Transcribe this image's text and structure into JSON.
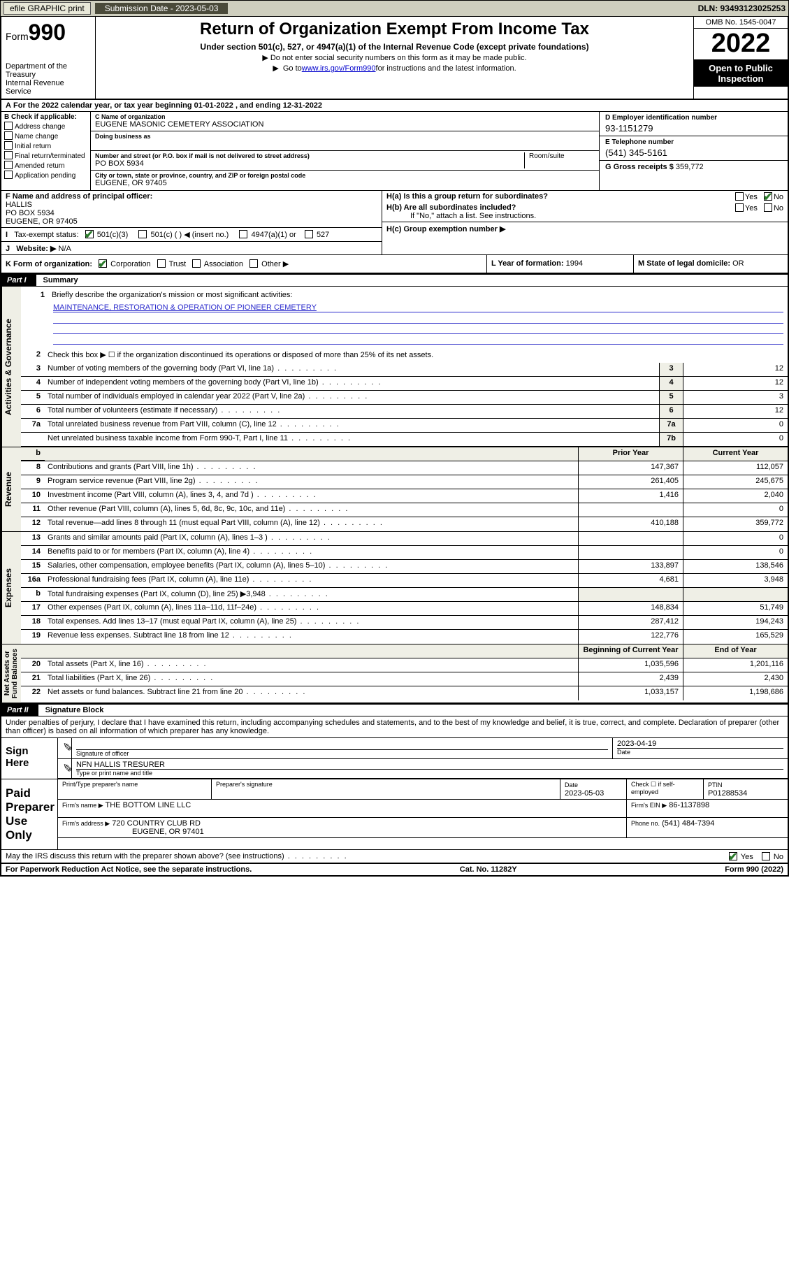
{
  "topbar": {
    "efile": "efile GRAPHIC print",
    "submission_label": "Submission Date - 2023-05-03",
    "dln": "DLN: 93493123025253"
  },
  "header": {
    "form_prefix": "Form",
    "form_num": "990",
    "title": "Return of Organization Exempt From Income Tax",
    "sub": "Under section 501(c), 527, or 4947(a)(1) of the Internal Revenue Code (except private foundations)",
    "note1": "Do not enter social security numbers on this form as it may be made public.",
    "note2_pre": "Go to ",
    "note2_link": "www.irs.gov/Form990",
    "note2_post": " for instructions and the latest information.",
    "dept": "Department of the Treasury\nInternal Revenue Service",
    "omb": "OMB No. 1545-0047",
    "year": "2022",
    "open": "Open to Public Inspection"
  },
  "A": {
    "text": "For the 2022 calendar year, or tax year beginning 01-01-2022    , and ending 12-31-2022"
  },
  "B": {
    "label": "B Check if applicable:",
    "opts": [
      "Address change",
      "Name change",
      "Initial return",
      "Final return/terminated",
      "Amended return",
      "Application pending"
    ]
  },
  "C": {
    "name_label": "C Name of organization",
    "name": "EUGENE MASONIC CEMETERY ASSOCIATION",
    "dba_label": "Doing business as",
    "addr_label": "Number and street (or P.O. box if mail is not delivered to street address)",
    "room_label": "Room/suite",
    "addr": "PO BOX 5934",
    "city_label": "City or town, state or province, country, and ZIP or foreign postal code",
    "city": "EUGENE, OR  97405"
  },
  "D": {
    "label": "D Employer identification number",
    "val": "93-1151279"
  },
  "E": {
    "label": "E Telephone number",
    "val": "(541) 345-5161"
  },
  "G": {
    "label": "G Gross receipts $",
    "val": "359,772"
  },
  "F": {
    "label": "F Name and address of principal officer:",
    "name": "HALLIS",
    "addr1": "PO BOX 5934",
    "addr2": "EUGENE, OR  97405"
  },
  "H": {
    "a": "H(a)  Is this a group return for subordinates?",
    "b": "H(b)  Are all subordinates included?",
    "b2": "If \"No,\" attach a list. See instructions.",
    "c": "H(c)  Group exemption number ▶"
  },
  "I": {
    "label": "Tax-exempt status:",
    "o1": "501(c)(3)",
    "o2": "501(c) (   ) ◀ (insert no.)",
    "o3": "4947(a)(1) or",
    "o4": "527"
  },
  "J": {
    "label": "Website: ▶",
    "val": "N/A"
  },
  "K": {
    "label": "K Form of organization:",
    "corp": "Corporation",
    "trust": "Trust",
    "assoc": "Association",
    "other": "Other ▶"
  },
  "L": {
    "label": "L Year of formation:",
    "val": "1994"
  },
  "M": {
    "label": "M State of legal domicile:",
    "val": "OR"
  },
  "part1": {
    "tag": "Part I",
    "title": "Summary",
    "q1": "Briefly describe the organization's mission or most significant activities:",
    "mission": "MAINTENANCE, RESTORATION & OPERATION OF PIONEER CEMETERY",
    "q2": "Check this box ▶ ☐  if the organization discontinued its operations or disposed of more than 25% of its net assets.",
    "rows_gov": [
      {
        "n": "3",
        "t": "Number of voting members of the governing body (Part VI, line 1a)",
        "box": "3",
        "v": "12"
      },
      {
        "n": "4",
        "t": "Number of independent voting members of the governing body (Part VI, line 1b)",
        "box": "4",
        "v": "12"
      },
      {
        "n": "5",
        "t": "Total number of individuals employed in calendar year 2022 (Part V, line 2a)",
        "box": "5",
        "v": "3"
      },
      {
        "n": "6",
        "t": "Total number of volunteers (estimate if necessary)",
        "box": "6",
        "v": "12"
      },
      {
        "n": "7a",
        "t": "Total unrelated business revenue from Part VIII, column (C), line 12",
        "box": "7a",
        "v": "0"
      },
      {
        "n": "",
        "t": "Net unrelated business taxable income from Form 990-T, Part I, line 11",
        "box": "7b",
        "v": "0"
      }
    ],
    "prior_hdr": "Prior Year",
    "curr_hdr": "Current Year",
    "rows_rev": [
      {
        "n": "8",
        "t": "Contributions and grants (Part VIII, line 1h)",
        "p": "147,367",
        "c": "112,057"
      },
      {
        "n": "9",
        "t": "Program service revenue (Part VIII, line 2g)",
        "p": "261,405",
        "c": "245,675"
      },
      {
        "n": "10",
        "t": "Investment income (Part VIII, column (A), lines 3, 4, and 7d )",
        "p": "1,416",
        "c": "2,040"
      },
      {
        "n": "11",
        "t": "Other revenue (Part VIII, column (A), lines 5, 6d, 8c, 9c, 10c, and 11e)",
        "p": "",
        "c": "0"
      },
      {
        "n": "12",
        "t": "Total revenue—add lines 8 through 11 (must equal Part VIII, column (A), line 12)",
        "p": "410,188",
        "c": "359,772"
      }
    ],
    "rows_exp": [
      {
        "n": "13",
        "t": "Grants and similar amounts paid (Part IX, column (A), lines 1–3 )",
        "p": "",
        "c": "0"
      },
      {
        "n": "14",
        "t": "Benefits paid to or for members (Part IX, column (A), line 4)",
        "p": "",
        "c": "0"
      },
      {
        "n": "15",
        "t": "Salaries, other compensation, employee benefits (Part IX, column (A), lines 5–10)",
        "p": "133,897",
        "c": "138,546"
      },
      {
        "n": "16a",
        "t": "Professional fundraising fees (Part IX, column (A), line 11e)",
        "p": "4,681",
        "c": "3,948"
      },
      {
        "n": "b",
        "t": "Total fundraising expenses (Part IX, column (D), line 25) ▶3,948",
        "p": "GRAY",
        "c": "GRAY"
      },
      {
        "n": "17",
        "t": "Other expenses (Part IX, column (A), lines 11a–11d, 11f–24e)",
        "p": "148,834",
        "c": "51,749"
      },
      {
        "n": "18",
        "t": "Total expenses. Add lines 13–17 (must equal Part IX, column (A), line 25)",
        "p": "287,412",
        "c": "194,243"
      },
      {
        "n": "19",
        "t": "Revenue less expenses. Subtract line 18 from line 12",
        "p": "122,776",
        "c": "165,529"
      }
    ],
    "boy_hdr": "Beginning of Current Year",
    "eoy_hdr": "End of Year",
    "rows_net": [
      {
        "n": "20",
        "t": "Total assets (Part X, line 16)",
        "p": "1,035,596",
        "c": "1,201,116"
      },
      {
        "n": "21",
        "t": "Total liabilities (Part X, line 26)",
        "p": "2,439",
        "c": "2,430"
      },
      {
        "n": "22",
        "t": "Net assets or fund balances. Subtract line 21 from line 20",
        "p": "1,033,157",
        "c": "1,198,686"
      }
    ],
    "side_gov": "Activities & Governance",
    "side_rev": "Revenue",
    "side_exp": "Expenses",
    "side_net": "Net Assets or\nFund Balances"
  },
  "part2": {
    "tag": "Part II",
    "title": "Signature Block",
    "decl": "Under penalties of perjury, I declare that I have examined this return, including accompanying schedules and statements, and to the best of my knowledge and belief, it is true, correct, and complete. Declaration of preparer (other than officer) is based on all information of which preparer has any knowledge.",
    "sign_here": "Sign Here",
    "sig_officer": "Signature of officer",
    "sig_date": "2023-04-19",
    "date_lbl": "Date",
    "sig_name": "NFN HALLIS TRESURER",
    "sig_name_lbl": "Type or print name and title",
    "paid": "Paid Preparer Use Only",
    "prep_name_lbl": "Print/Type preparer's name",
    "prep_sig_lbl": "Preparer's signature",
    "prep_date_lbl": "Date",
    "prep_date": "2023-05-03",
    "prep_self": "Check ☐ if self-employed",
    "ptin_lbl": "PTIN",
    "ptin": "P01288534",
    "firm_name_lbl": "Firm's name    ▶",
    "firm_name": "THE BOTTOM LINE LLC",
    "firm_ein_lbl": "Firm's EIN ▶",
    "firm_ein": "86-1137898",
    "firm_addr_lbl": "Firm's address ▶",
    "firm_addr1": "720 COUNTRY CLUB RD",
    "firm_addr2": "EUGENE, OR  97401",
    "phone_lbl": "Phone no.",
    "phone": "(541) 484-7394",
    "discuss": "May the IRS discuss this return with the preparer shown above? (see instructions)"
  },
  "footer": {
    "pra": "For Paperwork Reduction Act Notice, see the separate instructions.",
    "cat": "Cat. No. 11282Y",
    "form": "Form 990 (2022)"
  }
}
